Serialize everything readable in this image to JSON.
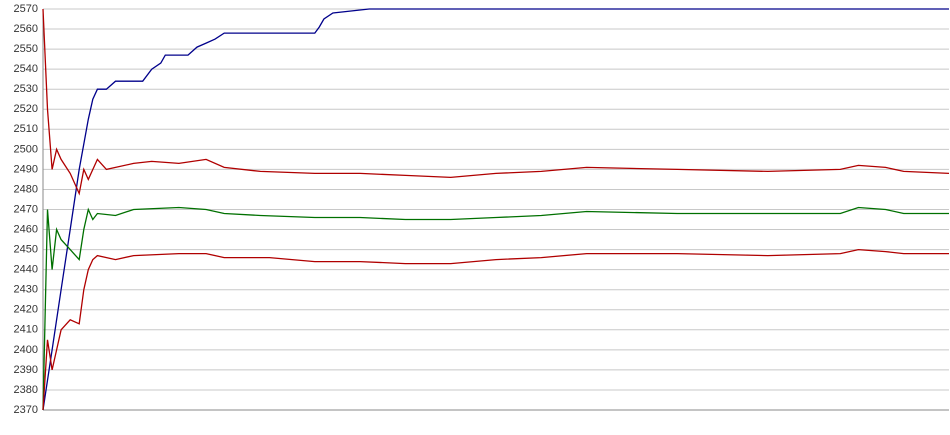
{
  "chart_data": {
    "type": "line",
    "xlim": [
      0,
      100
    ],
    "ylim": [
      2370,
      2570
    ],
    "yticks": [
      2370,
      2380,
      2390,
      2400,
      2410,
      2420,
      2430,
      2440,
      2450,
      2460,
      2470,
      2480,
      2490,
      2500,
      2510,
      2520,
      2530,
      2540,
      2550,
      2560,
      2570
    ],
    "grid": true,
    "series": [
      {
        "color": "#00008b",
        "x": [
          0,
          1,
          2,
          3,
          4,
          5,
          5.5,
          6,
          7,
          8,
          11,
          12,
          13,
          13.5,
          16,
          17,
          18,
          19,
          20,
          30,
          30.5,
          31,
          32,
          36,
          100
        ],
        "values": [
          2370,
          2400,
          2430,
          2460,
          2490,
          2515,
          2525,
          2530,
          2530,
          2534,
          2534,
          2540,
          2543,
          2547,
          2547,
          2551,
          2553,
          2555,
          2558,
          2558,
          2561,
          2565,
          2568,
          2570,
          2570
        ]
      },
      {
        "color": "#b00000",
        "x": [
          0,
          0.5,
          1,
          1.5,
          2,
          3,
          4,
          4.5,
          5,
          6,
          7,
          10,
          12,
          15,
          18,
          20,
          24,
          30,
          35,
          40,
          45,
          50,
          55,
          60,
          70,
          80,
          88,
          90,
          93,
          95,
          100
        ],
        "values": [
          2570,
          2520,
          2490,
          2500,
          2495,
          2488,
          2478,
          2490,
          2485,
          2495,
          2490,
          2493,
          2494,
          2493,
          2495,
          2491,
          2489,
          2488,
          2488,
          2487,
          2486,
          2488,
          2489,
          2491,
          2490,
          2489,
          2490,
          2492,
          2491,
          2489,
          2488
        ]
      },
      {
        "color": "#007000",
        "x": [
          0,
          0.5,
          1,
          1.5,
          2,
          3,
          4,
          4.5,
          5,
          5.5,
          6,
          8,
          10,
          15,
          18,
          20,
          24,
          30,
          35,
          40,
          45,
          50,
          55,
          60,
          70,
          80,
          88,
          90,
          93,
          95,
          100
        ],
        "values": [
          2370,
          2470,
          2440,
          2460,
          2455,
          2450,
          2445,
          2460,
          2470,
          2465,
          2468,
          2467,
          2470,
          2471,
          2470,
          2468,
          2467,
          2466,
          2466,
          2465,
          2465,
          2466,
          2467,
          2469,
          2468,
          2468,
          2468,
          2471,
          2470,
          2468,
          2468
        ]
      },
      {
        "color": "#b00000",
        "x": [
          0,
          0.5,
          1,
          1.5,
          2,
          3,
          4,
          4.5,
          5,
          5.5,
          6,
          8,
          10,
          15,
          18,
          20,
          25,
          30,
          35,
          40,
          45,
          50,
          55,
          60,
          70,
          80,
          88,
          90,
          93,
          95,
          100
        ],
        "values": [
          2370,
          2405,
          2390,
          2400,
          2410,
          2415,
          2413,
          2430,
          2440,
          2445,
          2447,
          2445,
          2447,
          2448,
          2448,
          2446,
          2446,
          2444,
          2444,
          2443,
          2443,
          2445,
          2446,
          2448,
          2448,
          2447,
          2448,
          2450,
          2449,
          2448,
          2448
        ]
      }
    ]
  }
}
